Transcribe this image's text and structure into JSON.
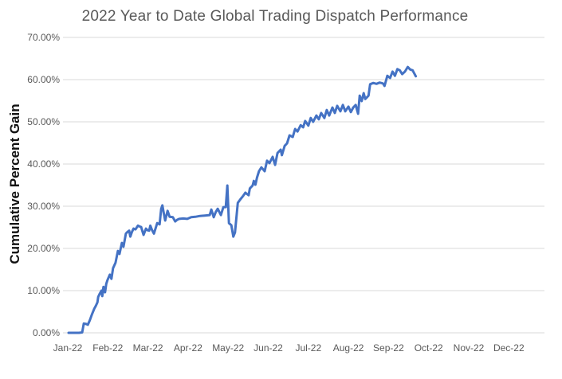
{
  "chart_data": {
    "type": "line",
    "title": "2022 Year to Date Global Trading Dispatch Performance",
    "xlabel": "",
    "ylabel": "Cumulative Percent Gain",
    "legend": "none",
    "grid": "horizontal",
    "x_tick_labels": [
      "Jan-22",
      "Feb-22",
      "Mar-22",
      "Apr-22",
      "May-22",
      "Jun-22",
      "Jul-22",
      "Aug-22",
      "Sep-22",
      "Oct-22",
      "Nov-22",
      "Dec-22"
    ],
    "y_tick_labels": [
      "0.00%",
      "10.00%",
      "20.00%",
      "30.00%",
      "40.00%",
      "50.00%",
      "60.00%",
      "70.00%"
    ],
    "ylim_percent": [
      0,
      70
    ],
    "xlim_months": [
      0,
      12
    ],
    "colors": {
      "line": "#4472C4",
      "gridline": "#D9D9D9",
      "tick_text": "#595959",
      "title_text": "#595959",
      "axis_title_text": "#111111",
      "background": "#FFFFFF"
    },
    "series": [
      {
        "name": "2022 YTD cumulative percent gain",
        "x_unit": "months since Jan-22 (0 = Jan 1, 1 = Feb 1, ...)",
        "y_unit": "percent",
        "points": [
          [
            0.02,
            0.0
          ],
          [
            0.15,
            0.0
          ],
          [
            0.28,
            0.0
          ],
          [
            0.36,
            0.1
          ],
          [
            0.4,
            2.2
          ],
          [
            0.46,
            2.1
          ],
          [
            0.5,
            1.9
          ],
          [
            0.55,
            3.0
          ],
          [
            0.6,
            4.3
          ],
          [
            0.66,
            5.7
          ],
          [
            0.7,
            6.4
          ],
          [
            0.74,
            7.2
          ],
          [
            0.76,
            8.5
          ],
          [
            0.8,
            9.3
          ],
          [
            0.84,
            10.0
          ],
          [
            0.86,
            8.7
          ],
          [
            0.89,
            10.9
          ],
          [
            0.93,
            9.6
          ],
          [
            0.96,
            11.6
          ],
          [
            0.99,
            12.5
          ],
          [
            1.05,
            13.8
          ],
          [
            1.09,
            12.8
          ],
          [
            1.13,
            15.3
          ],
          [
            1.19,
            16.6
          ],
          [
            1.25,
            19.4
          ],
          [
            1.29,
            18.7
          ],
          [
            1.35,
            21.3
          ],
          [
            1.39,
            20.4
          ],
          [
            1.45,
            23.5
          ],
          [
            1.49,
            23.9
          ],
          [
            1.53,
            24.2
          ],
          [
            1.56,
            22.8
          ],
          [
            1.6,
            23.9
          ],
          [
            1.64,
            24.7
          ],
          [
            1.69,
            24.5
          ],
          [
            1.75,
            25.4
          ],
          [
            1.79,
            25.2
          ],
          [
            1.83,
            25.1
          ],
          [
            1.89,
            23.2
          ],
          [
            1.95,
            24.7
          ],
          [
            1.99,
            24.3
          ],
          [
            2.03,
            24.2
          ],
          [
            2.06,
            25.4
          ],
          [
            2.1,
            24.4
          ],
          [
            2.15,
            23.5
          ],
          [
            2.23,
            26.0
          ],
          [
            2.29,
            25.7
          ],
          [
            2.33,
            29.4
          ],
          [
            2.36,
            30.2
          ],
          [
            2.4,
            28.1
          ],
          [
            2.43,
            26.6
          ],
          [
            2.49,
            28.9
          ],
          [
            2.54,
            27.5
          ],
          [
            2.62,
            27.4
          ],
          [
            2.68,
            26.4
          ],
          [
            2.73,
            26.8
          ],
          [
            2.78,
            27.0
          ],
          [
            2.88,
            27.1
          ],
          [
            2.98,
            27.0
          ],
          [
            3.08,
            27.4
          ],
          [
            3.18,
            27.5
          ],
          [
            3.3,
            27.7
          ],
          [
            3.42,
            27.8
          ],
          [
            3.54,
            27.9
          ],
          [
            3.58,
            29.2
          ],
          [
            3.64,
            27.4
          ],
          [
            3.69,
            28.6
          ],
          [
            3.74,
            29.4
          ],
          [
            3.82,
            27.9
          ],
          [
            3.88,
            29.8
          ],
          [
            3.94,
            29.8
          ],
          [
            3.98,
            34.9
          ],
          [
            4.02,
            26.0
          ],
          [
            4.08,
            25.5
          ],
          [
            4.13,
            22.8
          ],
          [
            4.17,
            23.8
          ],
          [
            4.24,
            30.8
          ],
          [
            4.31,
            31.7
          ],
          [
            4.37,
            32.4
          ],
          [
            4.43,
            33.2
          ],
          [
            4.51,
            32.6
          ],
          [
            4.54,
            34.2
          ],
          [
            4.61,
            34.9
          ],
          [
            4.64,
            36.0
          ],
          [
            4.68,
            35.1
          ],
          [
            4.72,
            36.8
          ],
          [
            4.77,
            38.3
          ],
          [
            4.83,
            39.2
          ],
          [
            4.91,
            38.3
          ],
          [
            4.97,
            40.8
          ],
          [
            5.03,
            40.2
          ],
          [
            5.11,
            41.7
          ],
          [
            5.17,
            39.8
          ],
          [
            5.23,
            42.6
          ],
          [
            5.31,
            43.4
          ],
          [
            5.34,
            42.1
          ],
          [
            5.41,
            44.3
          ],
          [
            5.47,
            44.9
          ],
          [
            5.53,
            46.8
          ],
          [
            5.61,
            46.4
          ],
          [
            5.67,
            48.3
          ],
          [
            5.73,
            47.7
          ],
          [
            5.81,
            49.2
          ],
          [
            5.87,
            48.7
          ],
          [
            5.92,
            50.2
          ],
          [
            6.0,
            49.1
          ],
          [
            6.06,
            50.9
          ],
          [
            6.12,
            50.0
          ],
          [
            6.2,
            51.5
          ],
          [
            6.26,
            50.6
          ],
          [
            6.32,
            52.1
          ],
          [
            6.4,
            50.9
          ],
          [
            6.46,
            52.8
          ],
          [
            6.52,
            51.5
          ],
          [
            6.6,
            53.4
          ],
          [
            6.66,
            52.1
          ],
          [
            6.72,
            53.8
          ],
          [
            6.8,
            52.5
          ],
          [
            6.86,
            54.0
          ],
          [
            6.92,
            52.5
          ],
          [
            7.0,
            53.6
          ],
          [
            7.06,
            52.3
          ],
          [
            7.12,
            53.4
          ],
          [
            7.18,
            54.0
          ],
          [
            7.24,
            51.9
          ],
          [
            7.28,
            56.2
          ],
          [
            7.33,
            54.9
          ],
          [
            7.38,
            56.8
          ],
          [
            7.42,
            55.4
          ],
          [
            7.46,
            55.8
          ],
          [
            7.5,
            56.2
          ],
          [
            7.54,
            58.9
          ],
          [
            7.62,
            59.2
          ],
          [
            7.7,
            59.0
          ],
          [
            7.78,
            59.3
          ],
          [
            7.86,
            59.1
          ],
          [
            7.9,
            58.5
          ],
          [
            7.97,
            60.9
          ],
          [
            8.04,
            60.4
          ],
          [
            8.1,
            61.9
          ],
          [
            8.16,
            60.9
          ],
          [
            8.22,
            62.5
          ],
          [
            8.28,
            62.2
          ],
          [
            8.34,
            61.3
          ],
          [
            8.41,
            61.9
          ],
          [
            8.48,
            63.0
          ],
          [
            8.54,
            62.4
          ],
          [
            8.6,
            62.2
          ],
          [
            8.68,
            60.8
          ]
        ]
      }
    ]
  }
}
